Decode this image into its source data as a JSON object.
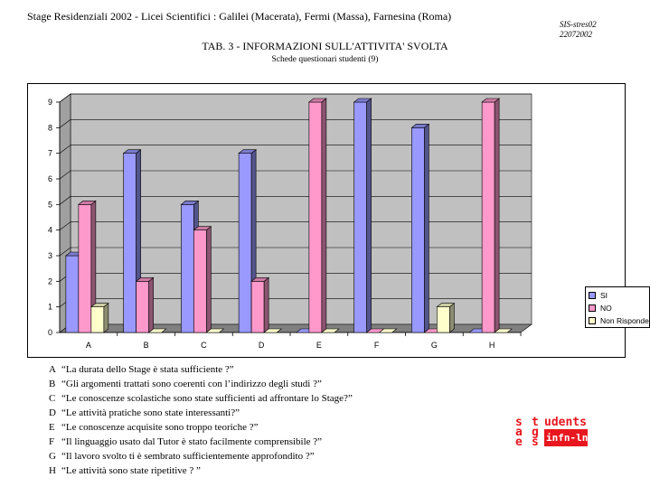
{
  "header": {
    "title": "Stage Residenziali 2002 - Licei Scientifici  : Galilei  (Macerata), Fermi (Massa), Farnesina  (Roma)",
    "code_line1": "SIS-stres02",
    "code_line2": "22072002"
  },
  "chart_data": {
    "type": "bar",
    "title": "TAB. 3 - INFORMAZIONI SULL'ATTIVITA' SVOLTA",
    "subtitle": "Schede questionari studenti  (9)",
    "xlabel": "",
    "ylabel": "",
    "categories": [
      "A",
      "B",
      "C",
      "D",
      "E",
      "F",
      "G",
      "H"
    ],
    "series": [
      {
        "name": "SI",
        "color": "#9999ff",
        "values": [
          3,
          7,
          5,
          7,
          0,
          9,
          8,
          0
        ]
      },
      {
        "name": "NO",
        "color": "#ff99cc",
        "values": [
          5,
          2,
          4,
          2,
          9,
          0,
          0,
          9
        ]
      },
      {
        "name": "Non Risponde",
        "color": "#ffffcc",
        "values": [
          1,
          0,
          0,
          0,
          0,
          0,
          1,
          0
        ]
      }
    ],
    "yticks": [
      "0",
      "1",
      "2",
      "3",
      "4",
      "5",
      "6",
      "7",
      "8",
      "9"
    ],
    "ylim": [
      0,
      9
    ],
    "grid": true,
    "legend_position": "right",
    "style": "3d-bar",
    "wall_color": "#c0c0c0"
  },
  "notes": [
    {
      "letter": "A",
      "text": "“La durata dello  Stage è  stata sufficiente ?”"
    },
    {
      "letter": "B",
      "text": "“Gli argomenti trattati sono coerenti    con l’indirizzo degli studi ?”"
    },
    {
      "letter": "C",
      "text": "“Le conoscenze scolastiche sono  state  sufficienti ad affrontare lo  Stage?”"
    },
    {
      "letter": "D",
      "text": "“Le attività pratiche sono    state interessanti?”"
    },
    {
      "letter": "E",
      "text": "“Le conoscenze acquisite sono troppo teoriche  ?”"
    },
    {
      "letter": "F",
      "text": "“Il linguaggio usato dal  Tutor è stato facilmente comprensibile  ?”"
    },
    {
      "letter": "G",
      "text": "“Il lavoro svolto ti  è sembrato sufficientemente approfondito  ?”"
    },
    {
      "letter": "H",
      "text": "“Le attività sono  state ripetitive  ? ”"
    }
  ],
  "logo": {
    "letters": [
      "s",
      "t",
      "a",
      "g",
      "e",
      "s"
    ],
    "udents": "udents",
    "band": "infn-lnf",
    "color": "#e8171f"
  }
}
